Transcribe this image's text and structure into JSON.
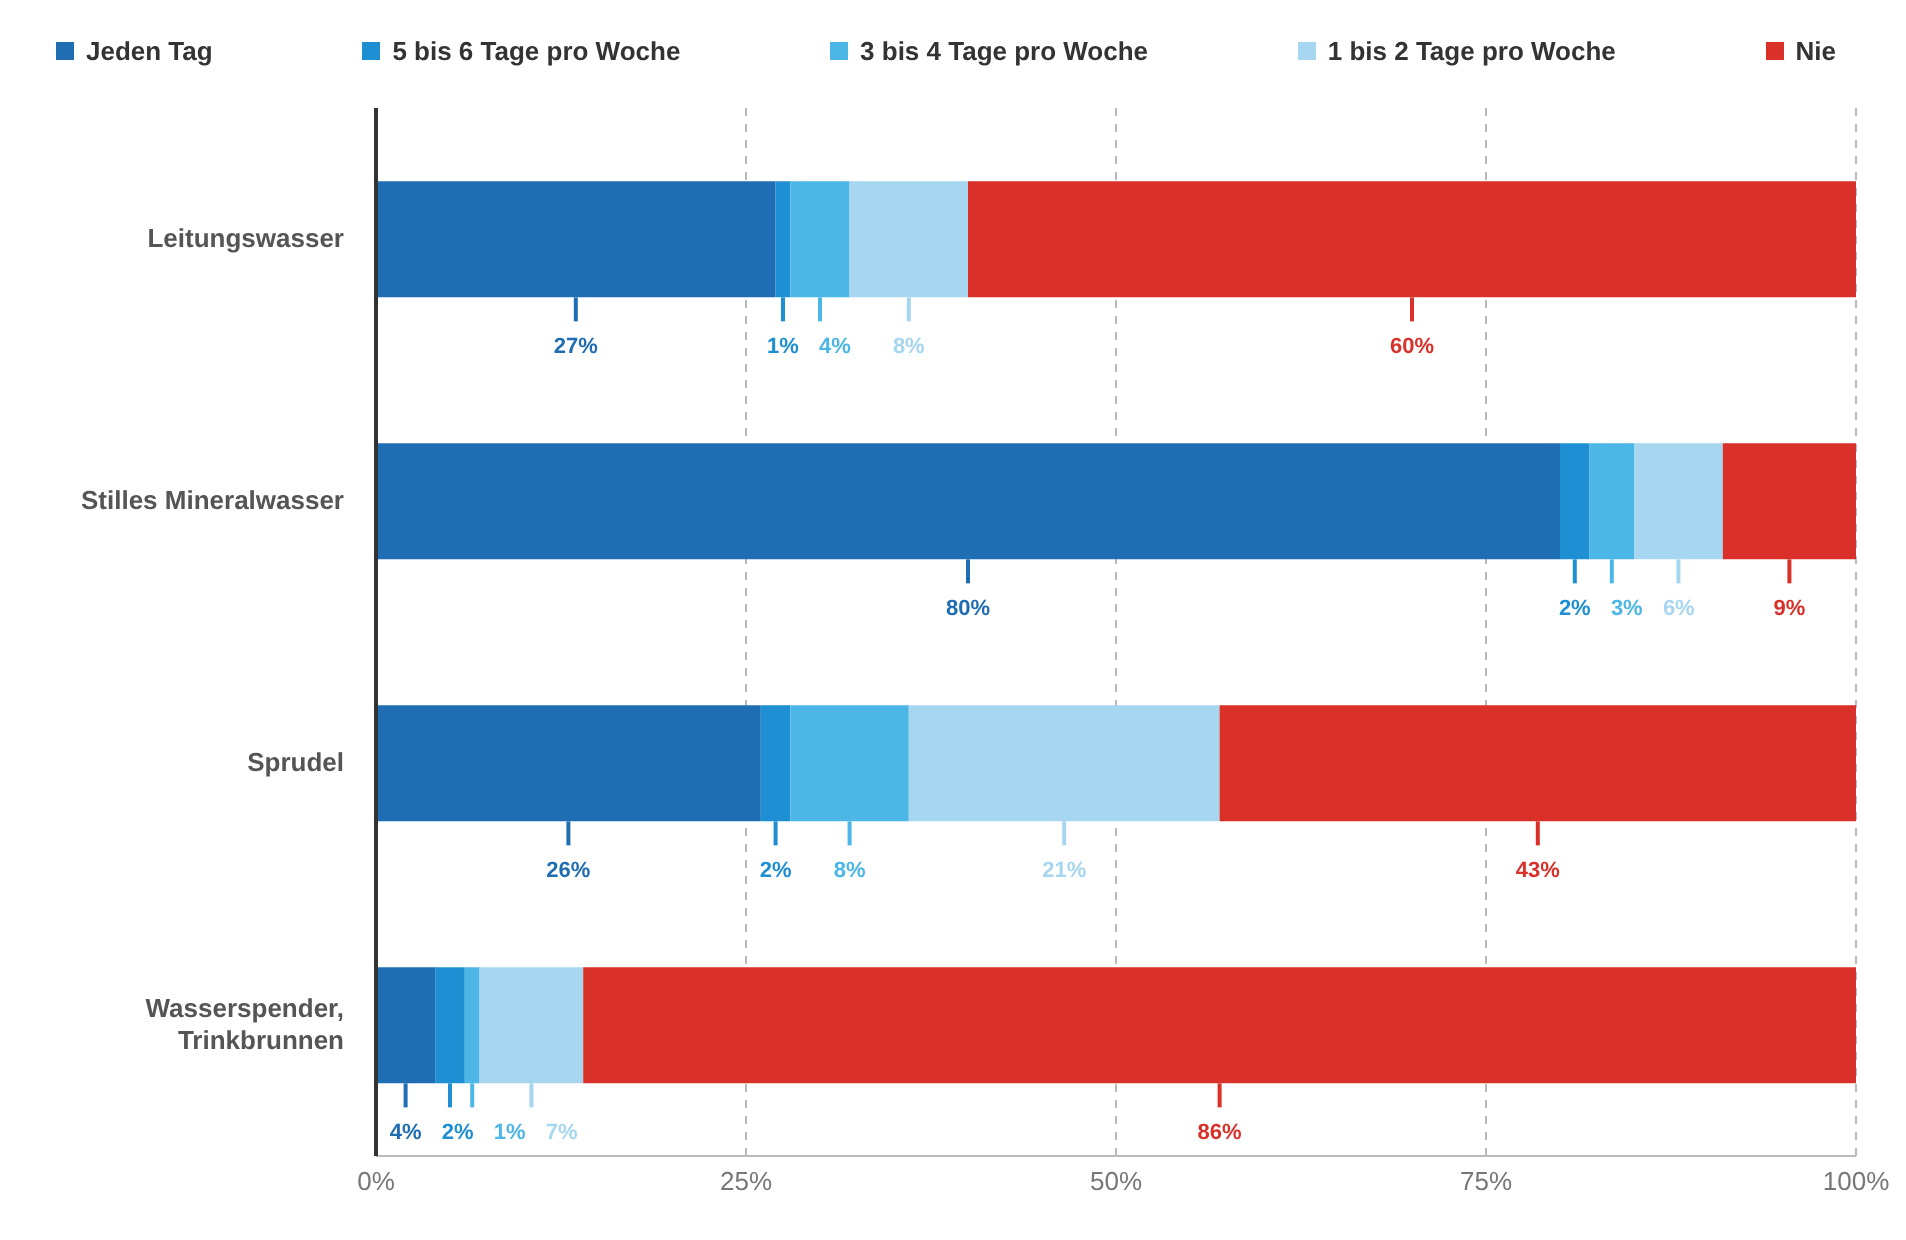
{
  "chart_data": {
    "type": "bar",
    "orientation": "horizontal",
    "stacked": true,
    "categories": [
      "Leitungswasser",
      "Stilles Mineralwasser",
      "Sprudel",
      "Wasserspender, Trinkbrunnen"
    ],
    "series": [
      {
        "name": "Jeden Tag",
        "color": "#1f6db3",
        "values": [
          27,
          80,
          26,
          4
        ],
        "value_labels": [
          "27%",
          "80%",
          "26%",
          "4%"
        ]
      },
      {
        "name": "5 bis 6 Tage pro Woche",
        "color": "#1d8fd2",
        "values": [
          1,
          2,
          2,
          2
        ],
        "value_labels": [
          "1%",
          "2%",
          "2%",
          "2%"
        ]
      },
      {
        "name": "3 bis 4 Tage pro Woche",
        "color": "#4cb6e6",
        "values": [
          4,
          3,
          8,
          1
        ],
        "value_labels": [
          "4%",
          "3%",
          "8%",
          "1%"
        ]
      },
      {
        "name": "1 bis 2 Tage pro Woche",
        "color": "#a6d6f0",
        "values": [
          8,
          6,
          21,
          7
        ],
        "value_labels": [
          "8%",
          "6%",
          "21%",
          "7%"
        ]
      },
      {
        "name": "Nie",
        "color": "#d9302a",
        "values": [
          60,
          9,
          43,
          86
        ],
        "value_labels": [
          "60%",
          "9%",
          "43%",
          "86%"
        ]
      }
    ],
    "xlim": [
      0,
      100
    ],
    "xticks": [
      {
        "value": 0,
        "label": "0%"
      },
      {
        "value": 25,
        "label": "25%"
      },
      {
        "value": 50,
        "label": "50%"
      },
      {
        "value": 75,
        "label": "75%"
      },
      {
        "value": 100,
        "label": "100%"
      }
    ],
    "grid": "x",
    "legend": "top"
  }
}
